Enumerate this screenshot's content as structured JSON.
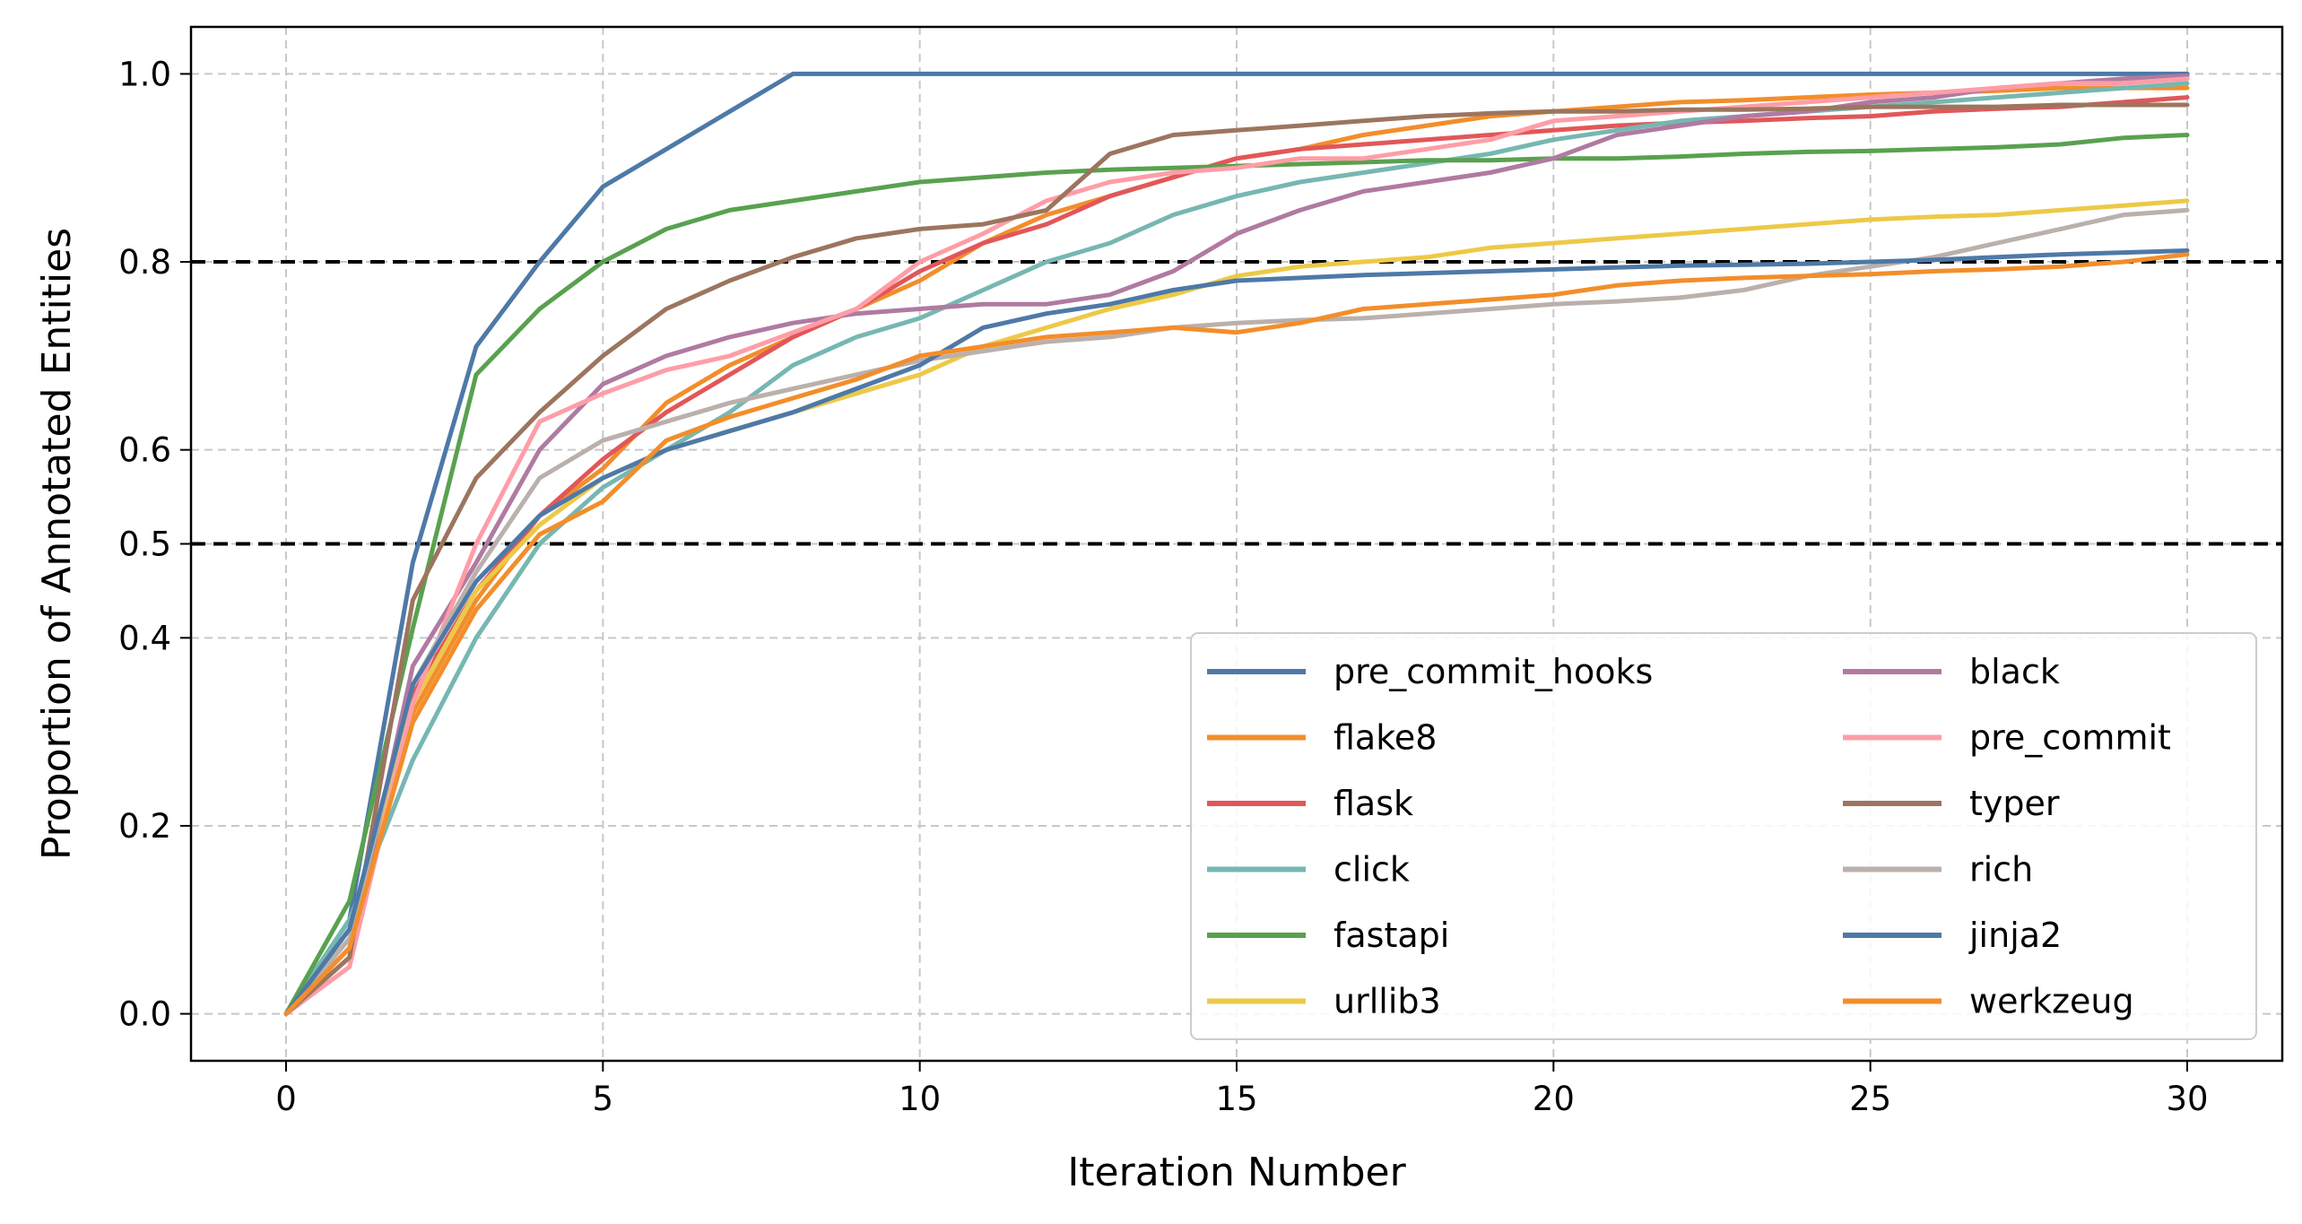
{
  "chart_data": {
    "type": "line",
    "xlabel": "Iteration Number",
    "ylabel": "Proportion of Annotated Entities",
    "xlim": [
      -1.5,
      31.5
    ],
    "ylim": [
      -0.05,
      1.05
    ],
    "x_ticks": [
      0,
      5,
      10,
      15,
      20,
      25,
      30
    ],
    "x_tick_labels": [
      "0",
      "5",
      "10",
      "15",
      "20",
      "25",
      "30"
    ],
    "y_ticks": [
      0.0,
      0.2,
      0.4,
      0.5,
      0.6,
      0.8,
      1.0
    ],
    "y_tick_labels": [
      "0.0",
      "0.2",
      "0.4",
      "0.5",
      "0.6",
      "0.8",
      "1.0"
    ],
    "grid": true,
    "grid_style": "dashed",
    "reference_lines": [
      0.8,
      0.5
    ],
    "legend_position": "lower right",
    "legend_columns": 2,
    "x": [
      0,
      1,
      2,
      3,
      4,
      5,
      6,
      7,
      8,
      9,
      10,
      11,
      12,
      13,
      14,
      15,
      16,
      17,
      18,
      19,
      20,
      21,
      22,
      23,
      24,
      25,
      26,
      27,
      28,
      29,
      30
    ],
    "series": [
      {
        "name": "pre_commit_hooks",
        "color": "#4e79a7",
        "values": [
          0.0,
          0.1,
          0.48,
          0.71,
          0.8,
          0.88,
          0.92,
          0.96,
          1.0,
          1.0,
          1.0,
          1.0,
          1.0,
          1.0,
          1.0,
          1.0,
          1.0,
          1.0,
          1.0,
          1.0,
          1.0,
          1.0,
          1.0,
          1.0,
          1.0,
          1.0,
          1.0,
          1.0,
          1.0,
          1.0,
          1.0
        ]
      },
      {
        "name": "flake8",
        "color": "#f28e2b",
        "values": [
          0.0,
          0.08,
          0.32,
          0.44,
          0.53,
          0.58,
          0.65,
          0.69,
          0.72,
          0.75,
          0.78,
          0.82,
          0.85,
          0.87,
          0.89,
          0.91,
          0.92,
          0.935,
          0.945,
          0.955,
          0.96,
          0.965,
          0.97,
          0.972,
          0.975,
          0.978,
          0.98,
          0.982,
          0.985,
          0.985,
          0.985
        ]
      },
      {
        "name": "flask",
        "color": "#e15759",
        "values": [
          0.0,
          0.07,
          0.34,
          0.45,
          0.53,
          0.59,
          0.64,
          0.68,
          0.72,
          0.75,
          0.79,
          0.82,
          0.84,
          0.87,
          0.89,
          0.91,
          0.92,
          0.925,
          0.93,
          0.935,
          0.94,
          0.945,
          0.948,
          0.95,
          0.953,
          0.955,
          0.96,
          0.963,
          0.965,
          0.97,
          0.975
        ]
      },
      {
        "name": "click",
        "color": "#76b7b2",
        "values": [
          0.0,
          0.1,
          0.27,
          0.4,
          0.5,
          0.56,
          0.6,
          0.64,
          0.69,
          0.72,
          0.74,
          0.77,
          0.8,
          0.82,
          0.85,
          0.87,
          0.885,
          0.895,
          0.905,
          0.915,
          0.93,
          0.94,
          0.95,
          0.955,
          0.96,
          0.965,
          0.97,
          0.975,
          0.98,
          0.985,
          0.99
        ]
      },
      {
        "name": "fastapi",
        "color": "#59a14f",
        "values": [
          0.0,
          0.12,
          0.41,
          0.68,
          0.75,
          0.8,
          0.835,
          0.855,
          0.865,
          0.875,
          0.885,
          0.89,
          0.895,
          0.898,
          0.9,
          0.902,
          0.904,
          0.906,
          0.908,
          0.908,
          0.91,
          0.91,
          0.912,
          0.915,
          0.917,
          0.918,
          0.92,
          0.922,
          0.925,
          0.932,
          0.935
        ]
      },
      {
        "name": "urllib3",
        "color": "#edc948",
        "values": [
          0.0,
          0.08,
          0.33,
          0.45,
          0.52,
          0.57,
          0.6,
          0.62,
          0.64,
          0.66,
          0.68,
          0.71,
          0.73,
          0.75,
          0.765,
          0.785,
          0.795,
          0.8,
          0.805,
          0.815,
          0.82,
          0.825,
          0.83,
          0.835,
          0.84,
          0.845,
          0.848,
          0.85,
          0.855,
          0.86,
          0.865
        ]
      },
      {
        "name": "black",
        "color": "#b07aa1",
        "values": [
          0.0,
          0.06,
          0.37,
          0.48,
          0.6,
          0.67,
          0.7,
          0.72,
          0.735,
          0.745,
          0.75,
          0.755,
          0.755,
          0.765,
          0.79,
          0.83,
          0.855,
          0.875,
          0.885,
          0.895,
          0.91,
          0.935,
          0.945,
          0.955,
          0.96,
          0.97,
          0.975,
          0.985,
          0.99,
          0.995,
          0.998
        ]
      },
      {
        "name": "pre_commit",
        "color": "#ff9da7",
        "values": [
          0.0,
          0.05,
          0.33,
          0.5,
          0.63,
          0.66,
          0.685,
          0.7,
          0.725,
          0.75,
          0.8,
          0.83,
          0.865,
          0.885,
          0.895,
          0.9,
          0.91,
          0.91,
          0.92,
          0.93,
          0.95,
          0.955,
          0.96,
          0.965,
          0.97,
          0.975,
          0.98,
          0.985,
          0.99,
          0.99,
          0.995
        ]
      },
      {
        "name": "typer",
        "color": "#9c755f",
        "values": [
          0.0,
          0.06,
          0.44,
          0.57,
          0.64,
          0.7,
          0.75,
          0.78,
          0.805,
          0.825,
          0.835,
          0.84,
          0.855,
          0.915,
          0.935,
          0.94,
          0.945,
          0.95,
          0.955,
          0.958,
          0.96,
          0.96,
          0.962,
          0.962,
          0.963,
          0.965,
          0.965,
          0.965,
          0.967,
          0.967,
          0.967
        ]
      },
      {
        "name": "rich",
        "color": "#bab0ac",
        "values": [
          0.0,
          0.08,
          0.35,
          0.47,
          0.57,
          0.61,
          0.63,
          0.65,
          0.665,
          0.68,
          0.695,
          0.705,
          0.715,
          0.72,
          0.73,
          0.735,
          0.738,
          0.74,
          0.745,
          0.75,
          0.755,
          0.758,
          0.762,
          0.77,
          0.785,
          0.795,
          0.805,
          0.82,
          0.835,
          0.85,
          0.855
        ]
      },
      {
        "name": "jinja2",
        "color": "#4e79a7",
        "values": [
          0.0,
          0.09,
          0.35,
          0.46,
          0.53,
          0.57,
          0.6,
          0.62,
          0.64,
          0.665,
          0.69,
          0.73,
          0.745,
          0.755,
          0.77,
          0.78,
          0.783,
          0.786,
          0.788,
          0.79,
          0.792,
          0.794,
          0.796,
          0.797,
          0.798,
          0.8,
          0.802,
          0.805,
          0.808,
          0.81,
          0.812
        ]
      },
      {
        "name": "werkzeug",
        "color": "#f28e2b",
        "values": [
          0.0,
          0.07,
          0.31,
          0.43,
          0.51,
          0.545,
          0.61,
          0.635,
          0.655,
          0.675,
          0.7,
          0.71,
          0.72,
          0.725,
          0.73,
          0.725,
          0.735,
          0.75,
          0.755,
          0.76,
          0.765,
          0.775,
          0.78,
          0.783,
          0.785,
          0.787,
          0.79,
          0.792,
          0.795,
          0.8,
          0.808
        ]
      }
    ]
  }
}
